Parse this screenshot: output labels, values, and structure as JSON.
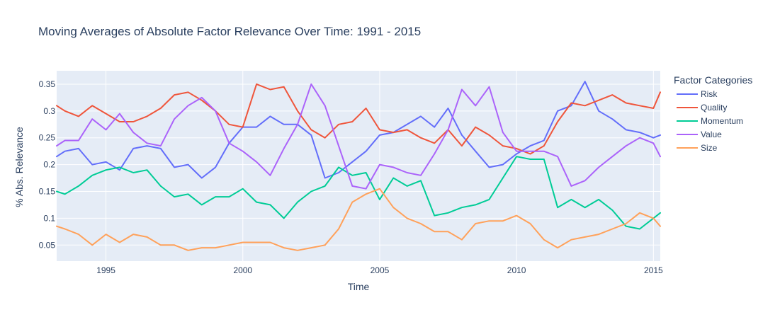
{
  "chart_data": {
    "type": "line",
    "title": "Moving Averages of Absolute Factor Relevance Over Time: 1991 - 2015",
    "xlabel": "Time",
    "ylabel": "% Abs. Relevance",
    "xlim": [
      1993.2,
      2015.25
    ],
    "ylim": [
      0.02,
      0.375
    ],
    "x_ticks": [
      1995,
      2000,
      2005,
      2010,
      2015
    ],
    "y_ticks": [
      0.05,
      0.1,
      0.15,
      0.2,
      0.25,
      0.3,
      0.35
    ],
    "grid": true,
    "legend": {
      "title": "Factor Categories",
      "placement": "right"
    },
    "series": [
      {
        "name": "Risk",
        "color": "#636efa",
        "x": [
          1993.2,
          1993.5,
          1994.0,
          1994.5,
          1995.0,
          1995.5,
          1996.0,
          1996.5,
          1997.0,
          1997.5,
          1998.0,
          1998.5,
          1999.0,
          1999.5,
          2000.0,
          2000.5,
          2001.0,
          2001.5,
          2002.0,
          2002.5,
          2003.0,
          2003.5,
          2004.0,
          2004.5,
          2005.0,
          2005.5,
          2006.0,
          2006.5,
          2007.0,
          2007.5,
          2008.0,
          2008.5,
          2009.0,
          2009.5,
          2010.0,
          2010.5,
          2011.0,
          2011.5,
          2012.0,
          2012.5,
          2013.0,
          2013.5,
          2014.0,
          2014.5,
          2015.0,
          2015.25
        ],
        "values": [
          0.215,
          0.225,
          0.23,
          0.2,
          0.205,
          0.19,
          0.23,
          0.235,
          0.23,
          0.195,
          0.2,
          0.175,
          0.195,
          0.24,
          0.27,
          0.27,
          0.29,
          0.275,
          0.275,
          0.255,
          0.175,
          0.185,
          0.205,
          0.225,
          0.255,
          0.26,
          0.275,
          0.29,
          0.27,
          0.305,
          0.255,
          0.225,
          0.195,
          0.2,
          0.22,
          0.235,
          0.245,
          0.3,
          0.31,
          0.355,
          0.3,
          0.285,
          0.265,
          0.26,
          0.25,
          0.255
        ]
      },
      {
        "name": "Quality",
        "color": "#ef553b",
        "x": [
          1993.2,
          1993.5,
          1994.0,
          1994.5,
          1995.0,
          1995.5,
          1996.0,
          1996.5,
          1997.0,
          1997.5,
          1998.0,
          1998.5,
          1999.0,
          1999.5,
          2000.0,
          2000.5,
          2001.0,
          2001.5,
          2002.0,
          2002.5,
          2003.0,
          2003.5,
          2004.0,
          2004.5,
          2005.0,
          2005.5,
          2006.0,
          2006.5,
          2007.0,
          2007.5,
          2008.0,
          2008.5,
          2009.0,
          2009.5,
          2010.0,
          2010.5,
          2011.0,
          2011.5,
          2012.0,
          2012.5,
          2013.0,
          2013.5,
          2014.0,
          2014.5,
          2015.0,
          2015.25
        ],
        "values": [
          0.31,
          0.3,
          0.29,
          0.31,
          0.295,
          0.28,
          0.28,
          0.29,
          0.305,
          0.33,
          0.335,
          0.32,
          0.3,
          0.275,
          0.27,
          0.35,
          0.34,
          0.345,
          0.3,
          0.265,
          0.25,
          0.275,
          0.28,
          0.305,
          0.265,
          0.26,
          0.265,
          0.25,
          0.24,
          0.265,
          0.235,
          0.27,
          0.255,
          0.235,
          0.23,
          0.22,
          0.235,
          0.28,
          0.315,
          0.31,
          0.32,
          0.33,
          0.315,
          0.31,
          0.305,
          0.335
        ]
      },
      {
        "name": "Momentum",
        "color": "#00cc96",
        "x": [
          1993.2,
          1993.5,
          1994.0,
          1994.5,
          1995.0,
          1995.5,
          1996.0,
          1996.5,
          1997.0,
          1997.5,
          1998.0,
          1998.5,
          1999.0,
          1999.5,
          2000.0,
          2000.5,
          2001.0,
          2001.5,
          2002.0,
          2002.5,
          2003.0,
          2003.5,
          2004.0,
          2004.5,
          2005.0,
          2005.5,
          2006.0,
          2006.5,
          2007.0,
          2007.5,
          2008.0,
          2008.5,
          2009.0,
          2009.5,
          2010.0,
          2010.5,
          2011.0,
          2011.5,
          2012.0,
          2012.5,
          2013.0,
          2013.5,
          2014.0,
          2014.5,
          2015.0,
          2015.25
        ],
        "values": [
          0.15,
          0.145,
          0.16,
          0.18,
          0.19,
          0.195,
          0.185,
          0.19,
          0.16,
          0.14,
          0.145,
          0.125,
          0.14,
          0.14,
          0.155,
          0.13,
          0.125,
          0.1,
          0.13,
          0.15,
          0.16,
          0.195,
          0.18,
          0.185,
          0.135,
          0.175,
          0.16,
          0.17,
          0.105,
          0.11,
          0.12,
          0.125,
          0.135,
          0.175,
          0.215,
          0.21,
          0.21,
          0.12,
          0.135,
          0.12,
          0.135,
          0.115,
          0.085,
          0.08,
          0.1,
          0.11
        ]
      },
      {
        "name": "Value",
        "color": "#ab63fa",
        "x": [
          1993.2,
          1993.5,
          1994.0,
          1994.5,
          1995.0,
          1995.5,
          1996.0,
          1996.5,
          1997.0,
          1997.5,
          1998.0,
          1998.5,
          1999.0,
          1999.5,
          2000.0,
          2000.5,
          2001.0,
          2001.5,
          2002.0,
          2002.5,
          2003.0,
          2003.5,
          2004.0,
          2004.5,
          2005.0,
          2005.5,
          2006.0,
          2006.5,
          2007.0,
          2007.5,
          2008.0,
          2008.5,
          2009.0,
          2009.5,
          2010.0,
          2010.5,
          2011.0,
          2011.5,
          2012.0,
          2012.5,
          2013.0,
          2013.5,
          2014.0,
          2014.5,
          2015.0,
          2015.25
        ],
        "values": [
          0.235,
          0.245,
          0.245,
          0.285,
          0.265,
          0.295,
          0.26,
          0.24,
          0.235,
          0.285,
          0.31,
          0.325,
          0.3,
          0.24,
          0.225,
          0.205,
          0.18,
          0.23,
          0.275,
          0.35,
          0.31,
          0.235,
          0.16,
          0.155,
          0.2,
          0.195,
          0.185,
          0.18,
          0.22,
          0.265,
          0.34,
          0.31,
          0.345,
          0.26,
          0.225,
          0.225,
          0.225,
          0.215,
          0.16,
          0.17,
          0.195,
          0.215,
          0.235,
          0.25,
          0.24,
          0.215
        ]
      },
      {
        "name": "Size",
        "color": "#ffa15a",
        "x": [
          1993.2,
          1993.5,
          1994.0,
          1994.5,
          1995.0,
          1995.5,
          1996.0,
          1996.5,
          1997.0,
          1997.5,
          1998.0,
          1998.5,
          1999.0,
          1999.5,
          2000.0,
          2000.5,
          2001.0,
          2001.5,
          2002.0,
          2002.5,
          2003.0,
          2003.5,
          2004.0,
          2004.5,
          2005.0,
          2005.5,
          2006.0,
          2006.5,
          2007.0,
          2007.5,
          2008.0,
          2008.5,
          2009.0,
          2009.5,
          2010.0,
          2010.5,
          2011.0,
          2011.5,
          2012.0,
          2012.5,
          2013.0,
          2013.5,
          2014.0,
          2014.5,
          2015.0,
          2015.25
        ],
        "values": [
          0.085,
          0.08,
          0.07,
          0.05,
          0.07,
          0.055,
          0.07,
          0.065,
          0.05,
          0.05,
          0.04,
          0.045,
          0.045,
          0.05,
          0.055,
          0.055,
          0.055,
          0.045,
          0.04,
          0.045,
          0.05,
          0.08,
          0.13,
          0.145,
          0.155,
          0.12,
          0.1,
          0.09,
          0.075,
          0.075,
          0.06,
          0.09,
          0.095,
          0.095,
          0.105,
          0.09,
          0.06,
          0.045,
          0.06,
          0.065,
          0.07,
          0.08,
          0.09,
          0.11,
          0.1,
          0.085
        ]
      }
    ]
  }
}
